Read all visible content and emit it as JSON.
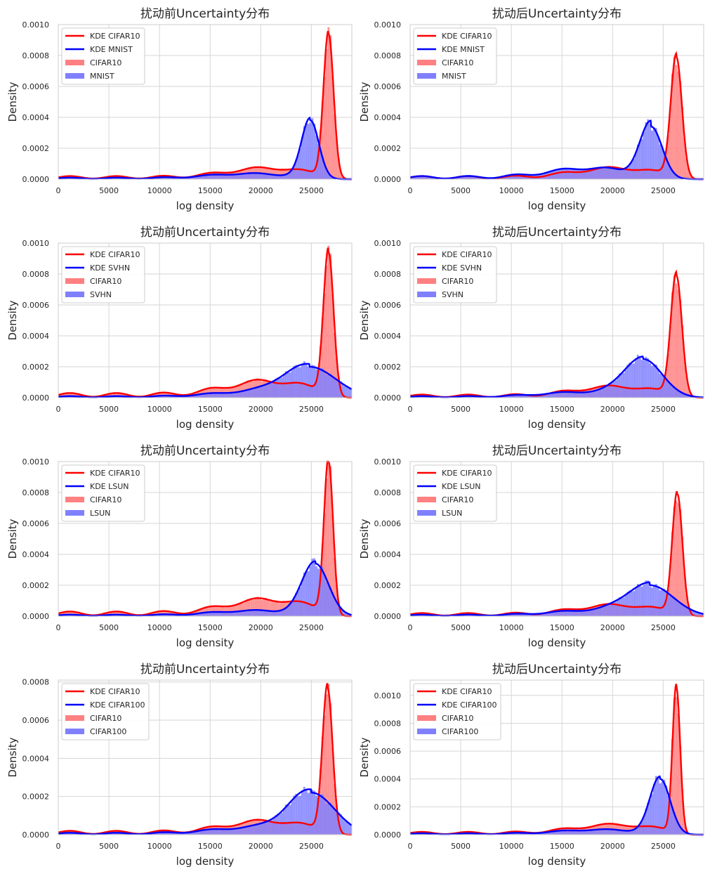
{
  "figure": {
    "rows": 4,
    "cols": 2
  },
  "colors": {
    "cifar": "#ff0000",
    "cifar_hist": "#ff8080",
    "ood": "#0000ff",
    "ood_hist": "#8080ff",
    "grid": "#d6d6d6",
    "frame": "#cccccc"
  },
  "chart_data": [
    {
      "type": "histogram+kde",
      "title": "扰动前Uncertainty分布",
      "xlabel": "log density",
      "ylabel": "Density",
      "xlim": [
        0,
        29000
      ],
      "ylim": [
        0,
        0.001
      ],
      "xticks": [
        "0",
        "5000",
        "10000",
        "15000",
        "20000",
        "25000"
      ],
      "yticks": [
        "0.0000",
        "0.0002",
        "0.0004",
        "0.0006",
        "0.0008",
        "0.0010"
      ],
      "legend": [
        "KDE CIFAR10",
        "KDE MNIST",
        "CIFAR10",
        "MNIST"
      ],
      "legend_position": "upper-left",
      "series": [
        {
          "name": "CIFAR10",
          "peak_x": 26700,
          "peak_y": 0.00094,
          "spread": 500,
          "tail": 2e-05
        },
        {
          "name": "MNIST",
          "peak_x": 24900,
          "peak_y": 0.00038,
          "spread": 850,
          "tail": 1e-05
        }
      ]
    },
    {
      "type": "histogram+kde",
      "title": "扰动后Uncertainty分布",
      "xlabel": "log density",
      "ylabel": "Density",
      "xlim": [
        0,
        29000
      ],
      "ylim": [
        0,
        0.001
      ],
      "xticks": [
        "0",
        "5000",
        "10000",
        "15000",
        "20000",
        "25000"
      ],
      "yticks": [
        "0.0000",
        "0.0002",
        "0.0004",
        "0.0006",
        "0.0008",
        "0.0010"
      ],
      "legend": [
        "KDE CIFAR10",
        "KDE MNIST",
        "CIFAR10",
        "MNIST"
      ],
      "legend_position": "upper-left",
      "series": [
        {
          "name": "CIFAR10",
          "peak_x": 26300,
          "peak_y": 0.00079,
          "spread": 550,
          "tail": 2e-05
        },
        {
          "name": "MNIST",
          "peak_x": 23800,
          "peak_y": 0.00034,
          "spread": 1100,
          "tail": 2e-05
        }
      ]
    },
    {
      "type": "histogram+kde",
      "title": "扰动前Uncertainty分布",
      "xlabel": "log density",
      "ylabel": "Density",
      "xlim": [
        0,
        29000
      ],
      "ylim": [
        0,
        0.001
      ],
      "xticks": [
        "0",
        "5000",
        "10000",
        "15000",
        "20000",
        "25000"
      ],
      "yticks": [
        "0.0000",
        "0.0002",
        "0.0004",
        "0.0006",
        "0.0008",
        "0.0010"
      ],
      "legend": [
        "KDE CIFAR10",
        "KDE SVHN",
        "CIFAR10",
        "SVHN"
      ],
      "legend_position": "upper-left",
      "series": [
        {
          "name": "CIFAR10",
          "peak_x": 26700,
          "peak_y": 0.00094,
          "spread": 500,
          "tail": 3e-05
        },
        {
          "name": "SVHN",
          "peak_x": 24800,
          "peak_y": 0.0002,
          "spread": 2600,
          "tail": 1e-05
        }
      ]
    },
    {
      "type": "histogram+kde",
      "title": "扰动后Uncertainty分布",
      "xlabel": "log density",
      "ylabel": "Density",
      "xlim": [
        0,
        29000
      ],
      "ylim": [
        0,
        0.001
      ],
      "xticks": [
        "0",
        "5000",
        "10000",
        "15000",
        "20000",
        "25000"
      ],
      "yticks": [
        "0.0000",
        "0.0002",
        "0.0004",
        "0.0006",
        "0.0008",
        "0.0010"
      ],
      "legend": [
        "KDE CIFAR10",
        "KDE SVHN",
        "CIFAR10",
        "SVHN"
      ],
      "legend_position": "upper-left",
      "series": [
        {
          "name": "CIFAR10",
          "peak_x": 26300,
          "peak_y": 0.00079,
          "spread": 550,
          "tail": 2e-05
        },
        {
          "name": "SVHN",
          "peak_x": 23000,
          "peak_y": 0.00025,
          "spread": 1900,
          "tail": 1e-05
        }
      ]
    },
    {
      "type": "histogram+kde",
      "title": "扰动前Uncertainty分布",
      "xlabel": "log density",
      "ylabel": "Density",
      "xlim": [
        0,
        29000
      ],
      "ylim": [
        0,
        0.001
      ],
      "xticks": [
        "0",
        "5000",
        "10000",
        "15000",
        "20000",
        "25000"
      ],
      "yticks": [
        "0.0000",
        "0.0002",
        "0.0004",
        "0.0006",
        "0.0008",
        "0.0010"
      ],
      "legend": [
        "KDE CIFAR10",
        "KDE LSUN",
        "CIFAR10",
        "LSUN"
      ],
      "legend_position": "upper-left",
      "series": [
        {
          "name": "CIFAR10",
          "peak_x": 26700,
          "peak_y": 0.001,
          "spread": 450,
          "tail": 3e-05
        },
        {
          "name": "LSUN",
          "peak_x": 25400,
          "peak_y": 0.00034,
          "spread": 1300,
          "tail": 1e-05
        }
      ]
    },
    {
      "type": "histogram+kde",
      "title": "扰动后Uncertainty分布",
      "xlabel": "log density",
      "ylabel": "Density",
      "xlim": [
        0,
        29000
      ],
      "ylim": [
        0,
        0.001
      ],
      "xticks": [
        "0",
        "5000",
        "10000",
        "15000",
        "20000",
        "25000"
      ],
      "yticks": [
        "0.0000",
        "0.0002",
        "0.0004",
        "0.0006",
        "0.0008",
        "0.0010"
      ],
      "legend": [
        "KDE CIFAR10",
        "KDE LSUN",
        "CIFAR10",
        "LSUN"
      ],
      "legend_position": "upper-left",
      "series": [
        {
          "name": "CIFAR10",
          "peak_x": 26400,
          "peak_y": 0.00079,
          "spread": 500,
          "tail": 2e-05
        },
        {
          "name": "LSUN",
          "peak_x": 23700,
          "peak_y": 0.0002,
          "spread": 2300,
          "tail": 1e-05
        }
      ]
    },
    {
      "type": "histogram+kde",
      "title": "扰动前Uncertainty分布",
      "xlabel": "log density",
      "ylabel": "Density",
      "xlim": [
        0,
        29000
      ],
      "ylim": [
        0,
        0.00081
      ],
      "xticks": [
        "0",
        "5000",
        "10000",
        "15000",
        "20000",
        "25000"
      ],
      "yticks": [
        "0.0000",
        "0.0002",
        "0.0004",
        "0.0006",
        "0.0008"
      ],
      "legend": [
        "KDE CIFAR10",
        "KDE CIFAR100",
        "CIFAR10",
        "CIFAR100"
      ],
      "legend_position": "upper-left",
      "series": [
        {
          "name": "CIFAR10",
          "peak_x": 26600,
          "peak_y": 0.00077,
          "spread": 500,
          "tail": 2e-05
        },
        {
          "name": "CIFAR100",
          "peak_x": 25000,
          "peak_y": 0.00022,
          "spread": 2300,
          "tail": 1e-05
        }
      ]
    },
    {
      "type": "histogram+kde",
      "title": "扰动后Uncertainty分布",
      "xlabel": "log density",
      "ylabel": "Density",
      "xlim": [
        0,
        29000
      ],
      "ylim": [
        0,
        0.00111
      ],
      "xticks": [
        "0",
        "5000",
        "10000",
        "15000",
        "20000",
        "25000"
      ],
      "yticks": [
        "0.0000",
        "0.0002",
        "0.0004",
        "0.0006",
        "0.0008",
        "0.0010"
      ],
      "legend": [
        "KDE CIFAR10",
        "KDE CIFAR100",
        "CIFAR10",
        "CIFAR100"
      ],
      "legend_position": "upper-left",
      "series": [
        {
          "name": "CIFAR10",
          "peak_x": 26300,
          "peak_y": 0.00106,
          "spread": 380,
          "tail": 2e-05
        },
        {
          "name": "CIFAR100",
          "peak_x": 24700,
          "peak_y": 0.0004,
          "spread": 1000,
          "tail": 1e-05
        }
      ]
    }
  ]
}
